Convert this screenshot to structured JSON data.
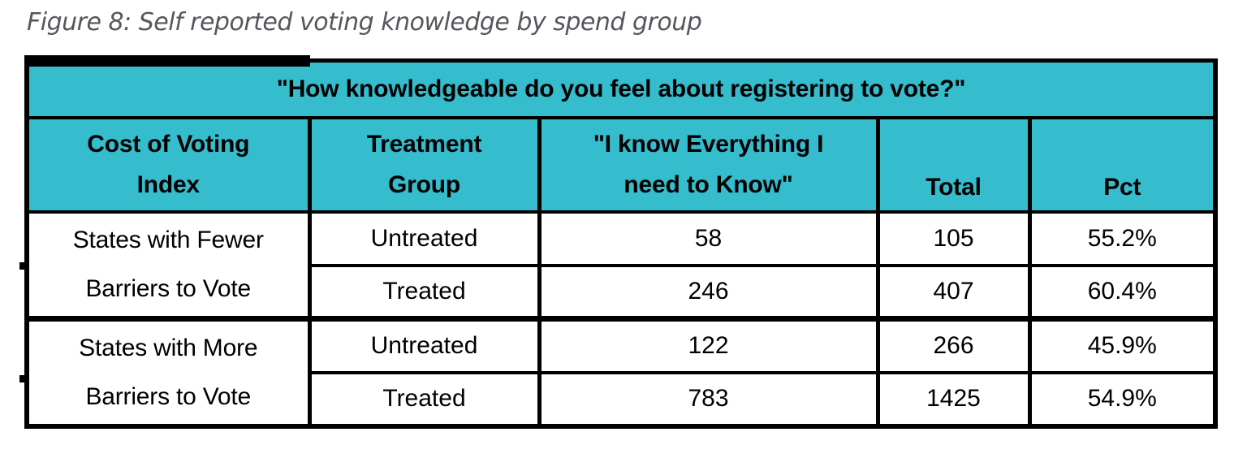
{
  "figure": {
    "title": "Figure 8: Self reported voting knowledge by spend group"
  },
  "colors": {
    "header_bg": "#35bccd",
    "border_color": "#000000",
    "title_color": "#54585c"
  },
  "table": {
    "banner": "\"How knowledgeable do you feel about registering to vote?\"",
    "columns": [
      "Cost of Voting\nIndex",
      "Treatment\nGroup",
      "\"I know Everything I\nneed to Know\"",
      "Total",
      "Pct"
    ],
    "groups": [
      {
        "label": "States with Fewer\nBarriers to Vote",
        "rows": [
          {
            "treatment": "Untreated",
            "know": "58",
            "total": "105",
            "pct": "55.2%"
          },
          {
            "treatment": "Treated",
            "know": "246",
            "total": "407",
            "pct": "60.4%"
          }
        ]
      },
      {
        "label": "States with More\nBarriers to Vote",
        "rows": [
          {
            "treatment": "Untreated",
            "know": "122",
            "total": "266",
            "pct": "45.9%"
          },
          {
            "treatment": "Treated",
            "know": "783",
            "total": "1425",
            "pct": "54.9%"
          }
        ]
      }
    ]
  },
  "chart_data": {
    "type": "table",
    "title": "Figure 8: Self reported voting knowledge by spend group",
    "banner": "\"How knowledgeable do you feel about registering to vote?\"",
    "columns": [
      "Cost of Voting Index",
      "Treatment Group",
      "\"I know Everything I need to Know\"",
      "Total",
      "Pct"
    ],
    "rows": [
      [
        "States with Fewer Barriers to Vote",
        "Untreated",
        58,
        105,
        "55.2%"
      ],
      [
        "States with Fewer Barriers to Vote",
        "Treated",
        246,
        407,
        "60.4%"
      ],
      [
        "States with More Barriers to Vote",
        "Untreated",
        122,
        266,
        "45.9%"
      ],
      [
        "States with More Barriers to Vote",
        "Treated",
        783,
        1425,
        "54.9%"
      ]
    ]
  }
}
